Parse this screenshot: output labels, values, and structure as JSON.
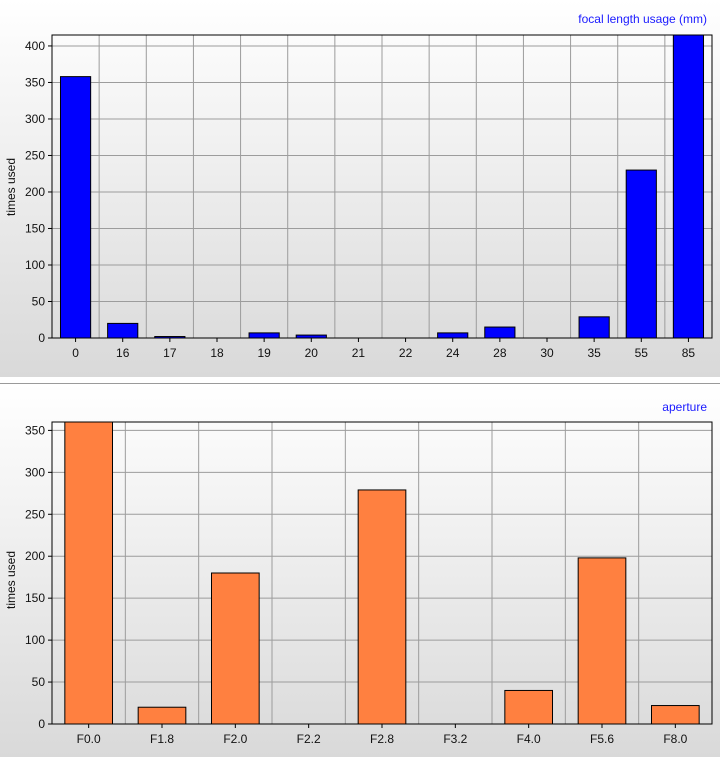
{
  "chart_data": [
    {
      "type": "bar",
      "title": "focal length usage (mm)",
      "title_color": "#1a1aff",
      "ylabel": "times used",
      "xlabel": "",
      "categories": [
        "0",
        "16",
        "17",
        "18",
        "19",
        "20",
        "21",
        "22",
        "24",
        "28",
        "30",
        "35",
        "55",
        "85"
      ],
      "values": [
        358,
        20,
        2,
        0,
        7,
        4,
        0,
        0,
        7,
        15,
        0,
        29,
        230,
        415
      ],
      "ylim": [
        0,
        415
      ],
      "yticks": [
        0,
        50,
        100,
        150,
        200,
        250,
        300,
        350,
        400
      ],
      "bar_color": "#0000ff",
      "grid": true,
      "legend": "none"
    },
    {
      "type": "bar",
      "title": "aperture",
      "title_color": "#1a1aff",
      "ylabel": "times used",
      "xlabel": "",
      "categories": [
        "F0.0",
        "F1.8",
        "F2.0",
        "F2.2",
        "F2.8",
        "F3.2",
        "F4.0",
        "F5.6",
        "F8.0"
      ],
      "values": [
        360,
        20,
        180,
        0,
        279,
        0,
        40,
        198,
        22
      ],
      "ylim": [
        0,
        360
      ],
      "yticks": [
        0,
        50,
        100,
        150,
        200,
        250,
        300,
        350
      ],
      "bar_color": "#ff8040",
      "grid": true,
      "legend": "none"
    }
  ]
}
